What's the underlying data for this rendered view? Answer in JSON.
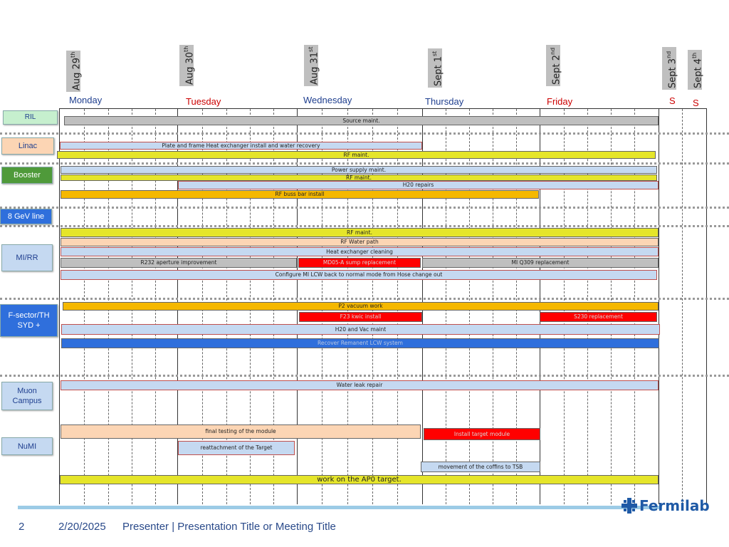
{
  "dates": [
    {
      "day": "Aug 29",
      "sup": "th"
    },
    {
      "day": "Aug 30",
      "sup": "th"
    },
    {
      "day": "Aug 31",
      "sup": "st"
    },
    {
      "day": "Sept 1",
      "sup": "st"
    },
    {
      "day": "Sept 2",
      "sup": "nd"
    },
    {
      "day": "Sept 3",
      "sup": "nd"
    },
    {
      "day": "Sept 4",
      "sup": "th"
    }
  ],
  "days": [
    "Monday",
    "Tuesday",
    "Wednesday",
    "Thursday",
    "Friday",
    "S",
    "S"
  ],
  "colors": {
    "weekday": "#1f3f8f",
    "weekend": "#cc0000"
  },
  "labels": [
    "RIL",
    "Linac",
    "Booster",
    "8 GeV line",
    "MI/RR",
    "F-sector/TH SYD +",
    "Muon Campus",
    "NuMI"
  ],
  "bars": {
    "ril_source": "Source maint.",
    "linac_hx": "Plate and frame Heat exchanger install and water recovery",
    "linac_rf": "RF maint.",
    "booster_ps": "Power supply maint.",
    "booster_rf": "RF maint.",
    "booster_h20": "H20 repairs",
    "booster_buss": "RF buss bar install",
    "mi_rf": "RF maint.",
    "mi_rfwater": "RF Water path",
    "mi_hx": "Heat exchanger cleaning",
    "mi_r232": "R232 aperture improvement",
    "mi_md05": "MD05-A sump replacement",
    "mi_q309": "MI Q309 replacement",
    "mi_lcw": "Configure MI LCW back to normal mode from Hose change out",
    "fs_p2": "P2 vacuum work",
    "fs_f23": "F23 kwic install",
    "fs_s230": "S230 replacement",
    "fs_h20vac": "H20 and Vac maint",
    "fs_remnant": "Recover Remanent LCW system",
    "muon_leak": "Water leak repair",
    "numi_final": "final testing of the module",
    "numi_install": "Install target module",
    "numi_reattach": "reattachment of the Target",
    "numi_coffins": "movement of the coffins to TSB",
    "numi_ap0": "work on the AP0 target."
  },
  "footer": {
    "page": "2",
    "date": "2/20/2025",
    "text": "Presenter | Presentation Title or Meeting Title",
    "logo": "Fermilab"
  }
}
